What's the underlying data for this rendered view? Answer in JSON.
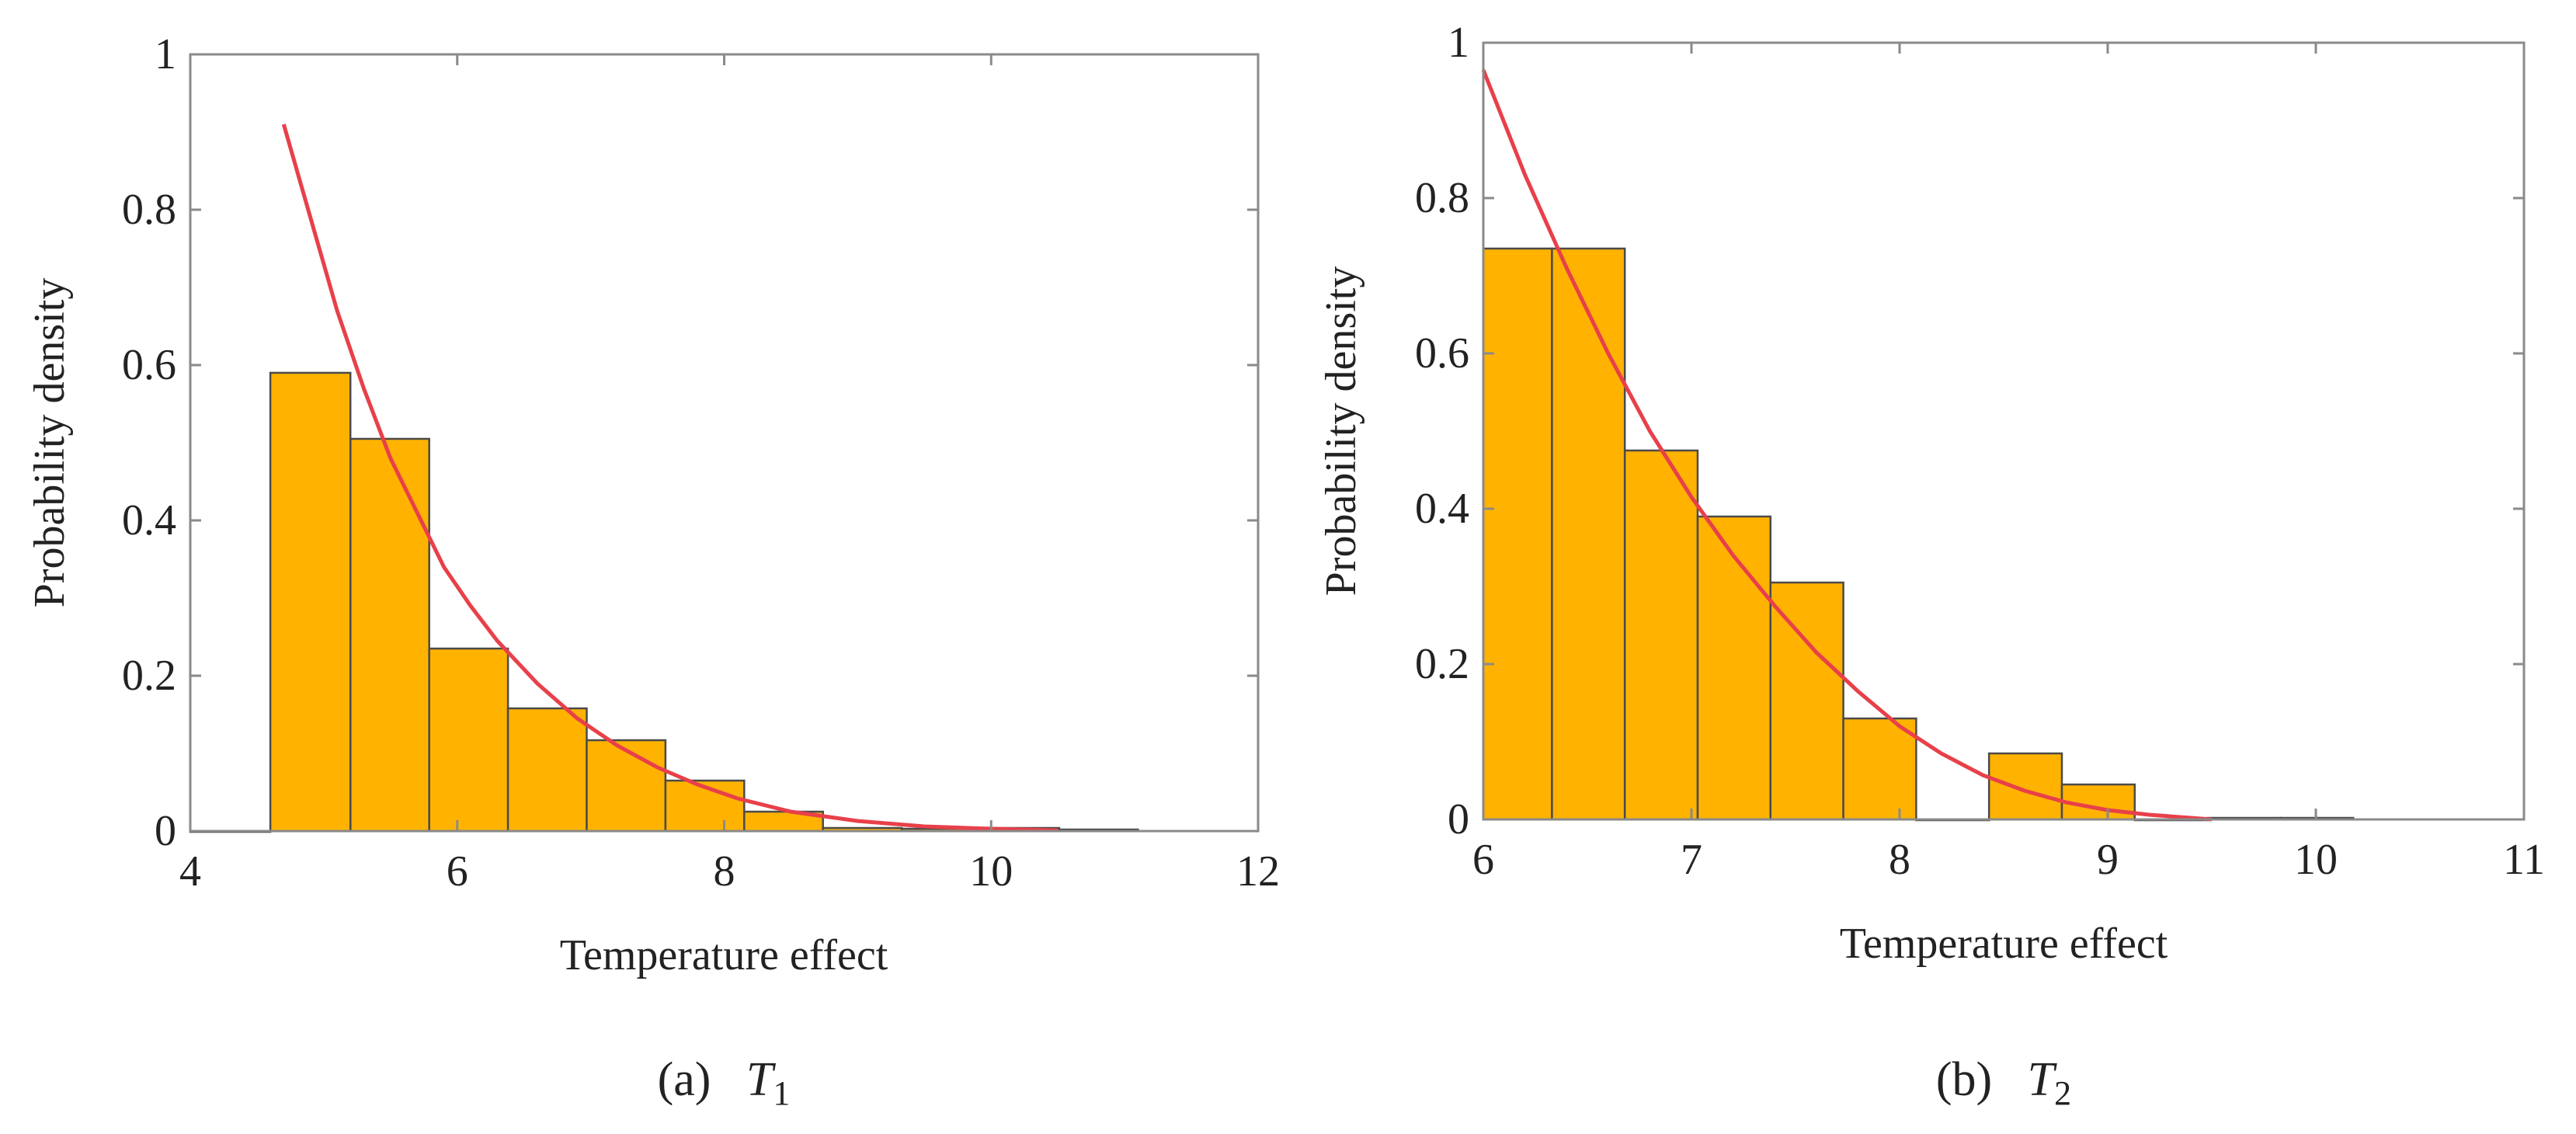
{
  "chart_data": [
    {
      "type": "bar",
      "subtype": "histogram-with-fit-curve",
      "caption": {
        "prefix": "(a)",
        "var": "T",
        "sub": "1"
      },
      "xlabel": "Temperature effect",
      "ylabel": "Probability density",
      "xlim": [
        4,
        12
      ],
      "ylim": [
        0,
        1
      ],
      "xticks": [
        4,
        6,
        8,
        10,
        12
      ],
      "xtick_labels": [
        "4",
        "6",
        "8",
        "10",
        "12"
      ],
      "yticks": [
        0,
        0.2,
        0.4,
        0.6,
        0.8,
        1
      ],
      "ytick_labels": [
        "0",
        "0.2",
        "0.4",
        "0.6",
        "0.8",
        "1"
      ],
      "bins": [
        {
          "x0": 3.8,
          "x1": 4.6,
          "value": 0
        },
        {
          "x0": 4.6,
          "x1": 5.2,
          "value": 0.59
        },
        {
          "x0": 5.2,
          "x1": 5.79,
          "value": 0.505
        },
        {
          "x0": 5.79,
          "x1": 6.38,
          "value": 0.235
        },
        {
          "x0": 6.38,
          "x1": 6.97,
          "value": 0.158
        },
        {
          "x0": 6.97,
          "x1": 7.56,
          "value": 0.117
        },
        {
          "x0": 7.56,
          "x1": 8.15,
          "value": 0.065
        },
        {
          "x0": 8.15,
          "x1": 8.74,
          "value": 0.025
        },
        {
          "x0": 8.74,
          "x1": 9.33,
          "value": 0.004
        },
        {
          "x0": 9.33,
          "x1": 9.92,
          "value": 0.003
        },
        {
          "x0": 9.92,
          "x1": 10.51,
          "value": 0.004
        },
        {
          "x0": 10.51,
          "x1": 11.1,
          "value": 0.002
        }
      ],
      "curve": {
        "name": "fit",
        "color": "#e8404a",
        "x": [
          4.7,
          4.9,
          5.1,
          5.3,
          5.5,
          5.7,
          5.9,
          6.1,
          6.3,
          6.6,
          6.9,
          7.2,
          7.5,
          7.8,
          8.1,
          8.5,
          9.0,
          9.5,
          10.0,
          10.5
        ],
        "y": [
          0.91,
          0.79,
          0.67,
          0.57,
          0.48,
          0.41,
          0.34,
          0.29,
          0.245,
          0.19,
          0.145,
          0.11,
          0.082,
          0.06,
          0.042,
          0.025,
          0.013,
          0.006,
          0.003,
          0.001
        ]
      }
    },
    {
      "type": "bar",
      "subtype": "histogram-with-fit-curve",
      "caption": {
        "prefix": "(b)",
        "var": "T",
        "sub": "2"
      },
      "xlabel": "Temperature effect",
      "ylabel": "Probability density",
      "xlim": [
        6,
        11
      ],
      "ylim": [
        0,
        1
      ],
      "xticks": [
        6,
        7,
        8,
        9,
        10,
        11
      ],
      "xtick_labels": [
        "6",
        "7",
        "8",
        "9",
        "10",
        "11"
      ],
      "yticks": [
        0,
        0.2,
        0.4,
        0.6,
        0.8,
        1
      ],
      "ytick_labels": [
        "0",
        "0.2",
        "0.4",
        "0.6",
        "0.8",
        "1"
      ],
      "bins": [
        {
          "x0": 6.0,
          "x1": 6.33,
          "value": 0.735
        },
        {
          "x0": 6.33,
          "x1": 6.68,
          "value": 0.735
        },
        {
          "x0": 6.68,
          "x1": 7.03,
          "value": 0.475
        },
        {
          "x0": 7.03,
          "x1": 7.38,
          "value": 0.39
        },
        {
          "x0": 7.38,
          "x1": 7.73,
          "value": 0.305
        },
        {
          "x0": 7.73,
          "x1": 8.08,
          "value": 0.13
        },
        {
          "x0": 8.08,
          "x1": 8.43,
          "value": 0.0
        },
        {
          "x0": 8.43,
          "x1": 8.78,
          "value": 0.085
        },
        {
          "x0": 8.78,
          "x1": 9.13,
          "value": 0.045
        },
        {
          "x0": 9.13,
          "x1": 9.48,
          "value": 0.0
        },
        {
          "x0": 9.48,
          "x1": 9.83,
          "value": 0.002
        },
        {
          "x0": 9.83,
          "x1": 10.18,
          "value": 0.002
        }
      ],
      "curve": {
        "name": "fit",
        "color": "#e8404a",
        "x": [
          6.0,
          6.2,
          6.4,
          6.6,
          6.8,
          7.0,
          7.2,
          7.4,
          7.6,
          7.8,
          8.0,
          8.2,
          8.4,
          8.6,
          8.8,
          9.0,
          9.2,
          9.4,
          9.5
        ],
        "y": [
          0.965,
          0.83,
          0.71,
          0.6,
          0.5,
          0.415,
          0.34,
          0.275,
          0.215,
          0.165,
          0.12,
          0.085,
          0.057,
          0.037,
          0.022,
          0.012,
          0.006,
          0.002,
          0.0
        ]
      }
    }
  ],
  "style": {
    "bar_fill": "#ffb300",
    "bar_stroke": "#4a4a4a",
    "axis_color": "#8a8a8a",
    "text_color": "#222222"
  }
}
